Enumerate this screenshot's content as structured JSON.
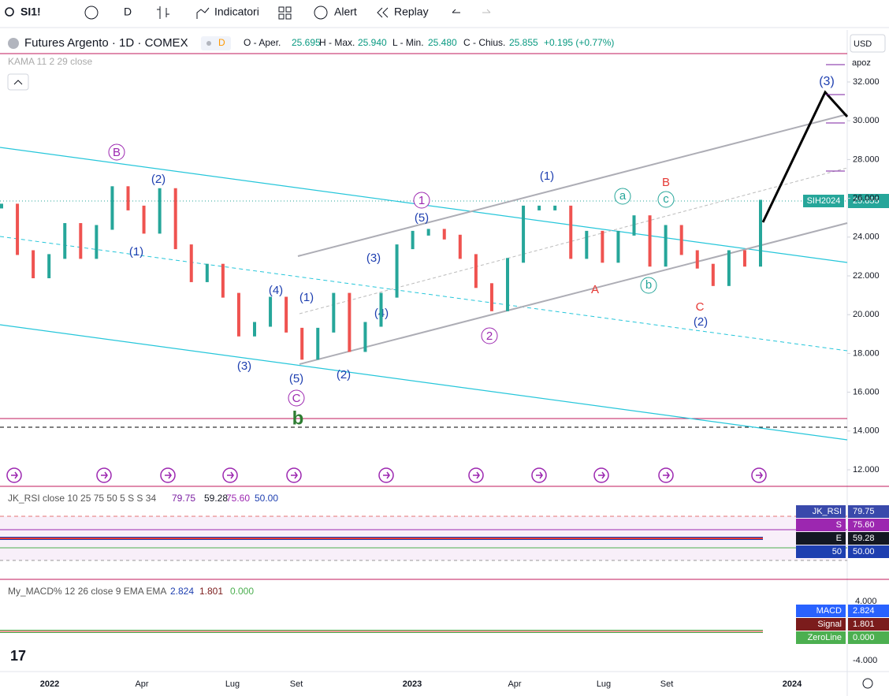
{
  "toolbar": {
    "symbol": "SI1!",
    "interval": "D",
    "indicators": "Indicatori",
    "alert": "Alert",
    "replay": "Replay"
  },
  "legend": {
    "title": "Futures Argento · 1D · COMEX",
    "badge": "D",
    "open_label": "O - Aper.",
    "open": "25.695",
    "high_label": "H - Max.",
    "high": "25.940",
    "low_label": "L - Min.",
    "low": "25.480",
    "close_label": "C - Chius.",
    "close": "25.855",
    "change": "+0.195 (+0.77%)",
    "indicator": "KAMA 11 2 29 close"
  },
  "price_axis": {
    "currency": "USD",
    "scale": "apoz",
    "labels": [
      "32.000",
      "30.000",
      "28.000",
      "26.000",
      "24.000",
      "22.000",
      "20.000",
      "18.000",
      "16.000",
      "14.000",
      "12.000"
    ],
    "tag_symbol": "SIH2024",
    "tag_price": "25.855"
  },
  "time_axis": [
    "2022",
    "Apr",
    "Lug",
    "Set",
    "2023",
    "Apr",
    "Lug",
    "Set",
    "2024"
  ],
  "waves": [
    "B",
    "(2)",
    "(1)",
    "(3)",
    "(4)",
    "(1)",
    "(5)",
    "C",
    "b",
    "(2)",
    "(3)",
    "(4)",
    "1",
    "(5)",
    "2",
    "(1)",
    "a",
    "A",
    "B",
    "c",
    "b",
    "C",
    "(2)",
    "(3)"
  ],
  "rsi": {
    "title": "JK_RSI close 10 25 75 50 5 S S 34",
    "v1": "79.75",
    "v2": "59.28",
    "v3": "75.60",
    "v4": "50.00",
    "tags": [
      [
        "JK_RSI",
        "79.75"
      ],
      [
        "S",
        "75.60"
      ],
      [
        "E",
        "59.28"
      ],
      [
        "50",
        "50.00"
      ]
    ]
  },
  "macd": {
    "title": "My_MACD% 12 26 close 9 EMA EMA",
    "v1": "2.824",
    "v2": "1.801",
    "v3": "0.000",
    "axis_top": "4.000",
    "axis_bottom": "-4.000",
    "tags": [
      [
        "MACD",
        "2.824"
      ],
      [
        "Signal",
        "1.801"
      ],
      [
        "ZeroLine",
        "0.000"
      ]
    ]
  },
  "price_series": {
    "closes": [
      25.6,
      23.2,
      22.0,
      23.0,
      24.6,
      23.0,
      24.5,
      26.5,
      25.5,
      24.3,
      26.4,
      23.5,
      21.8,
      22.5,
      21.0,
      19.0,
      19.5,
      20.8,
      19.2,
      17.8,
      19.2,
      21.0,
      18.2,
      19.5,
      21.0,
      23.5,
      24.2,
      24.3,
      24.0,
      23.0,
      21.5,
      20.3,
      22.8,
      25.5,
      25.5,
      25.5,
      23.0,
      24.2,
      22.8,
      24.2,
      25.0,
      22.6,
      24.5,
      23.2,
      22.5,
      21.6,
      23.2,
      22.6,
      25.8
    ]
  }
}
